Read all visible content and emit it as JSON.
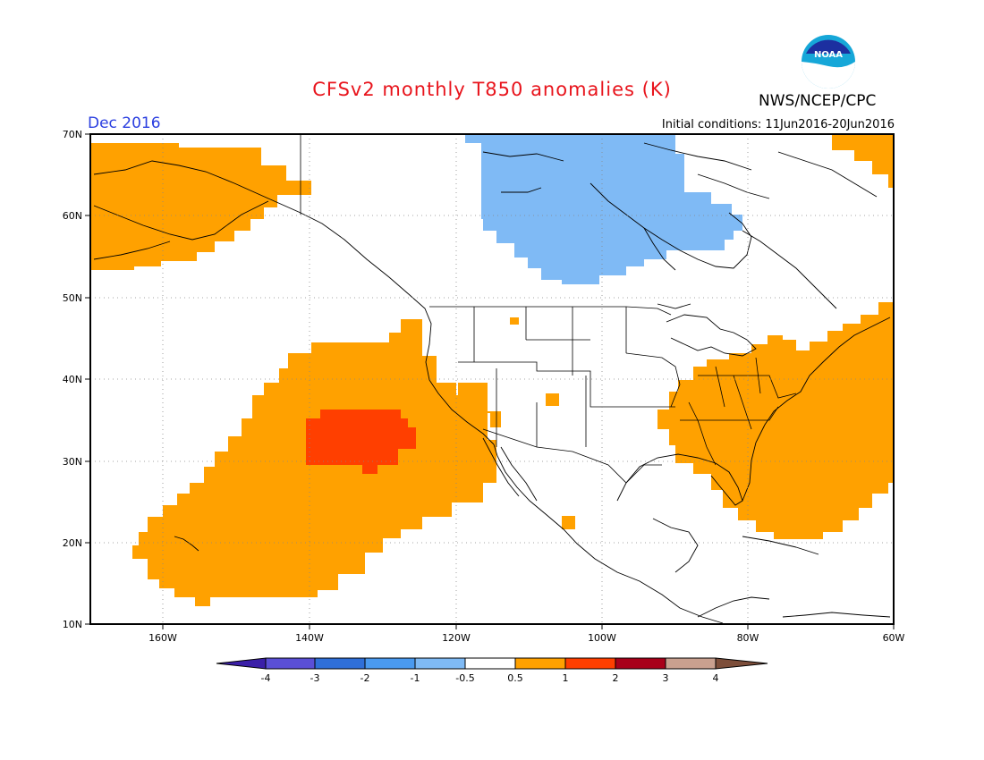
{
  "header": {
    "title": "CFSv2 monthly T850 anomalies (K)",
    "period": "Dec 2016",
    "initial_conditions": "Initial conditions: 11Jun2016-20Jun2016",
    "agency": "NWS/NCEP/CPC",
    "logo_text": "NOAA"
  },
  "axes": {
    "lat_labels": [
      "70N",
      "60N",
      "50N",
      "40N",
      "30N",
      "20N",
      "10N"
    ],
    "lon_labels": [
      "160W",
      "140W",
      "120W",
      "100W",
      "80W",
      "60W"
    ]
  },
  "colorbar": {
    "labels": [
      "-4",
      "-3",
      "-2",
      "-1",
      "-0.5",
      "0.5",
      "1",
      "2",
      "3",
      "4"
    ],
    "colors": [
      "#3b1fa8",
      "#5a4fd6",
      "#2f6fd8",
      "#4a9af0",
      "#7fbaf5",
      "#ffffff",
      "#ffa100",
      "#ff3f00",
      "#a8001a",
      "#c9a08f",
      "#7d4e3a"
    ]
  },
  "anomaly_colors": {
    "cool": "#7fbaf5",
    "warm": "#ffa100",
    "hot": "#ff3f00"
  }
}
